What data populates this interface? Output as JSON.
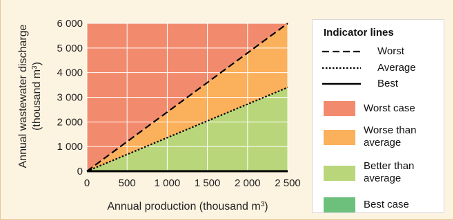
{
  "chart_data": {
    "type": "area",
    "title": "",
    "xlabel": "Annual production (thousand m³)",
    "ylabel_line1": "Annual wastewater discharge",
    "ylabel_line2": "(thousand m³)",
    "xlim": [
      0,
      2500
    ],
    "ylim": [
      0,
      6000
    ],
    "x_ticks": [
      0,
      500,
      1000,
      1500,
      2000,
      2500
    ],
    "x_tick_labels": [
      "0",
      "500",
      "1 000",
      "1 500",
      "2 000",
      "2 500"
    ],
    "y_ticks": [
      0,
      1000,
      2000,
      3000,
      4000,
      5000,
      6000
    ],
    "y_tick_labels": [
      "0",
      "1 000",
      "2 000",
      "3 000",
      "4 000",
      "5 000",
      "6 000"
    ],
    "grid": true,
    "legend_placement": "right",
    "indicator_lines": [
      {
        "name": "Worst",
        "style": "dashed",
        "x": [
          0,
          2500
        ],
        "y": [
          0,
          6000
        ]
      },
      {
        "name": "Average",
        "style": "dotted",
        "x": [
          0,
          2500
        ],
        "y": [
          0,
          3400
        ]
      },
      {
        "name": "Best",
        "style": "solid",
        "x": [
          0,
          2500
        ],
        "y": [
          0,
          0
        ]
      }
    ],
    "regions": [
      {
        "name": "Worst case",
        "color": "#f28b6d"
      },
      {
        "name": "Worse than average",
        "color": "#fbb05b"
      },
      {
        "name": "Better than average",
        "color": "#b9d77a"
      },
      {
        "name": "Best case",
        "color": "#6cc07c"
      }
    ]
  },
  "legend": {
    "title": "Indicator lines",
    "worst_line": "Worst",
    "average_line": "Average",
    "best_line": "Best",
    "worst_case": "Worst case",
    "worse_line1": "Worse than",
    "worse_line2": "average",
    "better_line1": "Better than",
    "better_line2": "average",
    "best_case": "Best case"
  }
}
